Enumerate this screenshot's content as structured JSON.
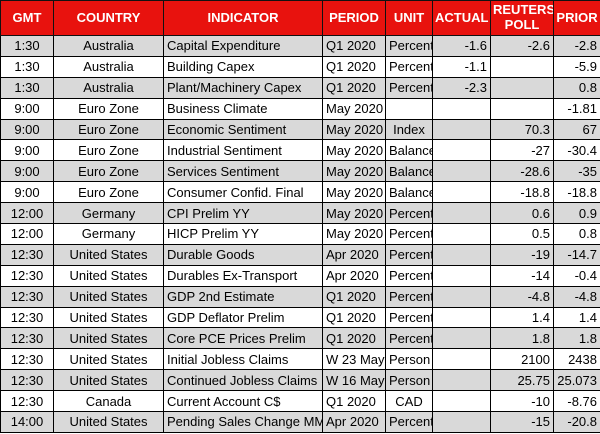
{
  "colors": {
    "header_bg": "#E8120E",
    "header_text": "#FFFFFF",
    "row_stripe": "#D9D9D9",
    "row_plain": "#FFFFFF",
    "grid_line": "#000000"
  },
  "table": {
    "columns": [
      {
        "key": "gmt",
        "label": "GMT"
      },
      {
        "key": "country",
        "label": "COUNTRY"
      },
      {
        "key": "indicator",
        "label": "INDICATOR"
      },
      {
        "key": "period",
        "label": "PERIOD"
      },
      {
        "key": "unit",
        "label": "UNIT"
      },
      {
        "key": "actual",
        "label": "ACTUAL"
      },
      {
        "key": "reuters_poll",
        "label": "REUTERS POLL"
      },
      {
        "key": "prior",
        "label": "PRIOR"
      }
    ],
    "rows": [
      {
        "gmt": "1:30",
        "country": "Australia",
        "indicator": "Capital Expenditure",
        "period": "Q1 2020",
        "unit": "Percent",
        "actual": "-1.6",
        "reuters_poll": "-2.6",
        "prior": "-2.8"
      },
      {
        "gmt": "1:30",
        "country": "Australia",
        "indicator": "Building Capex",
        "period": "Q1 2020",
        "unit": "Percent",
        "actual": "-1.1",
        "reuters_poll": "",
        "prior": "-5.9"
      },
      {
        "gmt": "1:30",
        "country": "Australia",
        "indicator": "Plant/Machinery Capex",
        "period": "Q1 2020",
        "unit": "Percent",
        "actual": "-2.3",
        "reuters_poll": "",
        "prior": "0.8"
      },
      {
        "gmt": "9:00",
        "country": "Euro Zone",
        "indicator": "Business Climate",
        "period": "May 2020",
        "unit": "",
        "actual": "",
        "reuters_poll": "",
        "prior": "-1.81"
      },
      {
        "gmt": "9:00",
        "country": "Euro Zone",
        "indicator": "Economic Sentiment",
        "period": "May 2020",
        "unit": "Index",
        "actual": "",
        "reuters_poll": "70.3",
        "prior": "67"
      },
      {
        "gmt": "9:00",
        "country": "Euro Zone",
        "indicator": "Industrial Sentiment",
        "period": "May 2020",
        "unit": "Balance",
        "actual": "",
        "reuters_poll": "-27",
        "prior": "-30.4"
      },
      {
        "gmt": "9:00",
        "country": "Euro Zone",
        "indicator": "Services Sentiment",
        "period": "May 2020",
        "unit": "Balance",
        "actual": "",
        "reuters_poll": "-28.6",
        "prior": "-35"
      },
      {
        "gmt": "9:00",
        "country": "Euro Zone",
        "indicator": "Consumer Confid. Final",
        "period": "May 2020",
        "unit": "Balance",
        "actual": "",
        "reuters_poll": "-18.8",
        "prior": "-18.8"
      },
      {
        "gmt": "12:00",
        "country": "Germany",
        "indicator": "CPI Prelim YY",
        "period": "May 2020",
        "unit": "Percent",
        "actual": "",
        "reuters_poll": "0.6",
        "prior": "0.9"
      },
      {
        "gmt": "12:00",
        "country": "Germany",
        "indicator": "HICP Prelim YY",
        "period": "May 2020",
        "unit": "Percent",
        "actual": "",
        "reuters_poll": "0.5",
        "prior": "0.8"
      },
      {
        "gmt": "12:30",
        "country": "United States",
        "indicator": "Durable Goods",
        "period": "Apr 2020",
        "unit": "Percent",
        "actual": "",
        "reuters_poll": "-19",
        "prior": "-14.7"
      },
      {
        "gmt": "12:30",
        "country": "United States",
        "indicator": "Durables Ex-Transport",
        "period": "Apr 2020",
        "unit": "Percent",
        "actual": "",
        "reuters_poll": "-14",
        "prior": "-0.4"
      },
      {
        "gmt": "12:30",
        "country": "United States",
        "indicator": "GDP 2nd Estimate",
        "period": "Q1 2020",
        "unit": "Percent",
        "actual": "",
        "reuters_poll": "-4.8",
        "prior": "-4.8"
      },
      {
        "gmt": "12:30",
        "country": "United States",
        "indicator": "GDP Deflator Prelim",
        "period": "Q1 2020",
        "unit": "Percent",
        "actual": "",
        "reuters_poll": "1.4",
        "prior": "1.4"
      },
      {
        "gmt": "12:30",
        "country": "United States",
        "indicator": "Core PCE Prices Prelim",
        "period": "Q1 2020",
        "unit": "Percent",
        "actual": "",
        "reuters_poll": "1.8",
        "prior": "1.8"
      },
      {
        "gmt": "12:30",
        "country": "United States",
        "indicator": "Initial Jobless Claims",
        "period": "W 23 May",
        "unit": "Person",
        "actual": "",
        "reuters_poll": "2100",
        "prior": "2438"
      },
      {
        "gmt": "12:30",
        "country": "United States",
        "indicator": "Continued Jobless Claims",
        "period": "W 16 May",
        "unit": "Person",
        "actual": "",
        "reuters_poll": "25.75",
        "prior": "25.073"
      },
      {
        "gmt": "12:30",
        "country": "Canada",
        "indicator": "Current Account C$",
        "period": "Q1 2020",
        "unit": "CAD",
        "actual": "",
        "reuters_poll": "-10",
        "prior": "-8.76"
      },
      {
        "gmt": "14:00",
        "country": "United States",
        "indicator": "Pending Sales Change MM",
        "period": "Apr 2020",
        "unit": "Percent",
        "actual": "",
        "reuters_poll": "-15",
        "prior": "-20.8"
      }
    ]
  }
}
